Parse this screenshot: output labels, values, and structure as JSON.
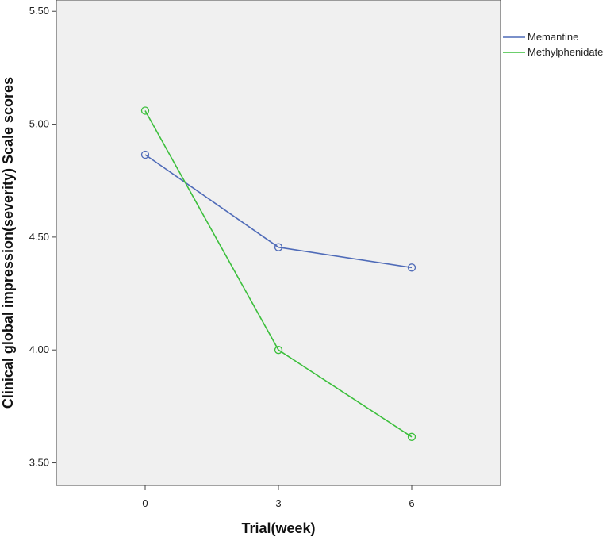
{
  "chart_data": {
    "type": "line",
    "title": "",
    "xlabel": "Trial(week)",
    "ylabel": "Clinical global impression(severity) Scale scores",
    "x": [
      0,
      3,
      6
    ],
    "x_ticks": [
      "0",
      "3",
      "6"
    ],
    "xlim": [
      -2,
      8
    ],
    "ylim": [
      3.4,
      5.55
    ],
    "y_ticks": [
      "3.50",
      "4.00",
      "4.50",
      "5.00",
      "5.50"
    ],
    "grid": false,
    "legend_position": "top-right, outside plot",
    "plot_background": "#f0f0f0",
    "series": [
      {
        "name": "Memantine",
        "color": "#4f6bb8",
        "values": [
          4.865,
          4.455,
          4.365
        ]
      },
      {
        "name": "Methylphenidate",
        "color": "#3cbf3c",
        "values": [
          5.06,
          4.0,
          3.615
        ]
      }
    ]
  }
}
